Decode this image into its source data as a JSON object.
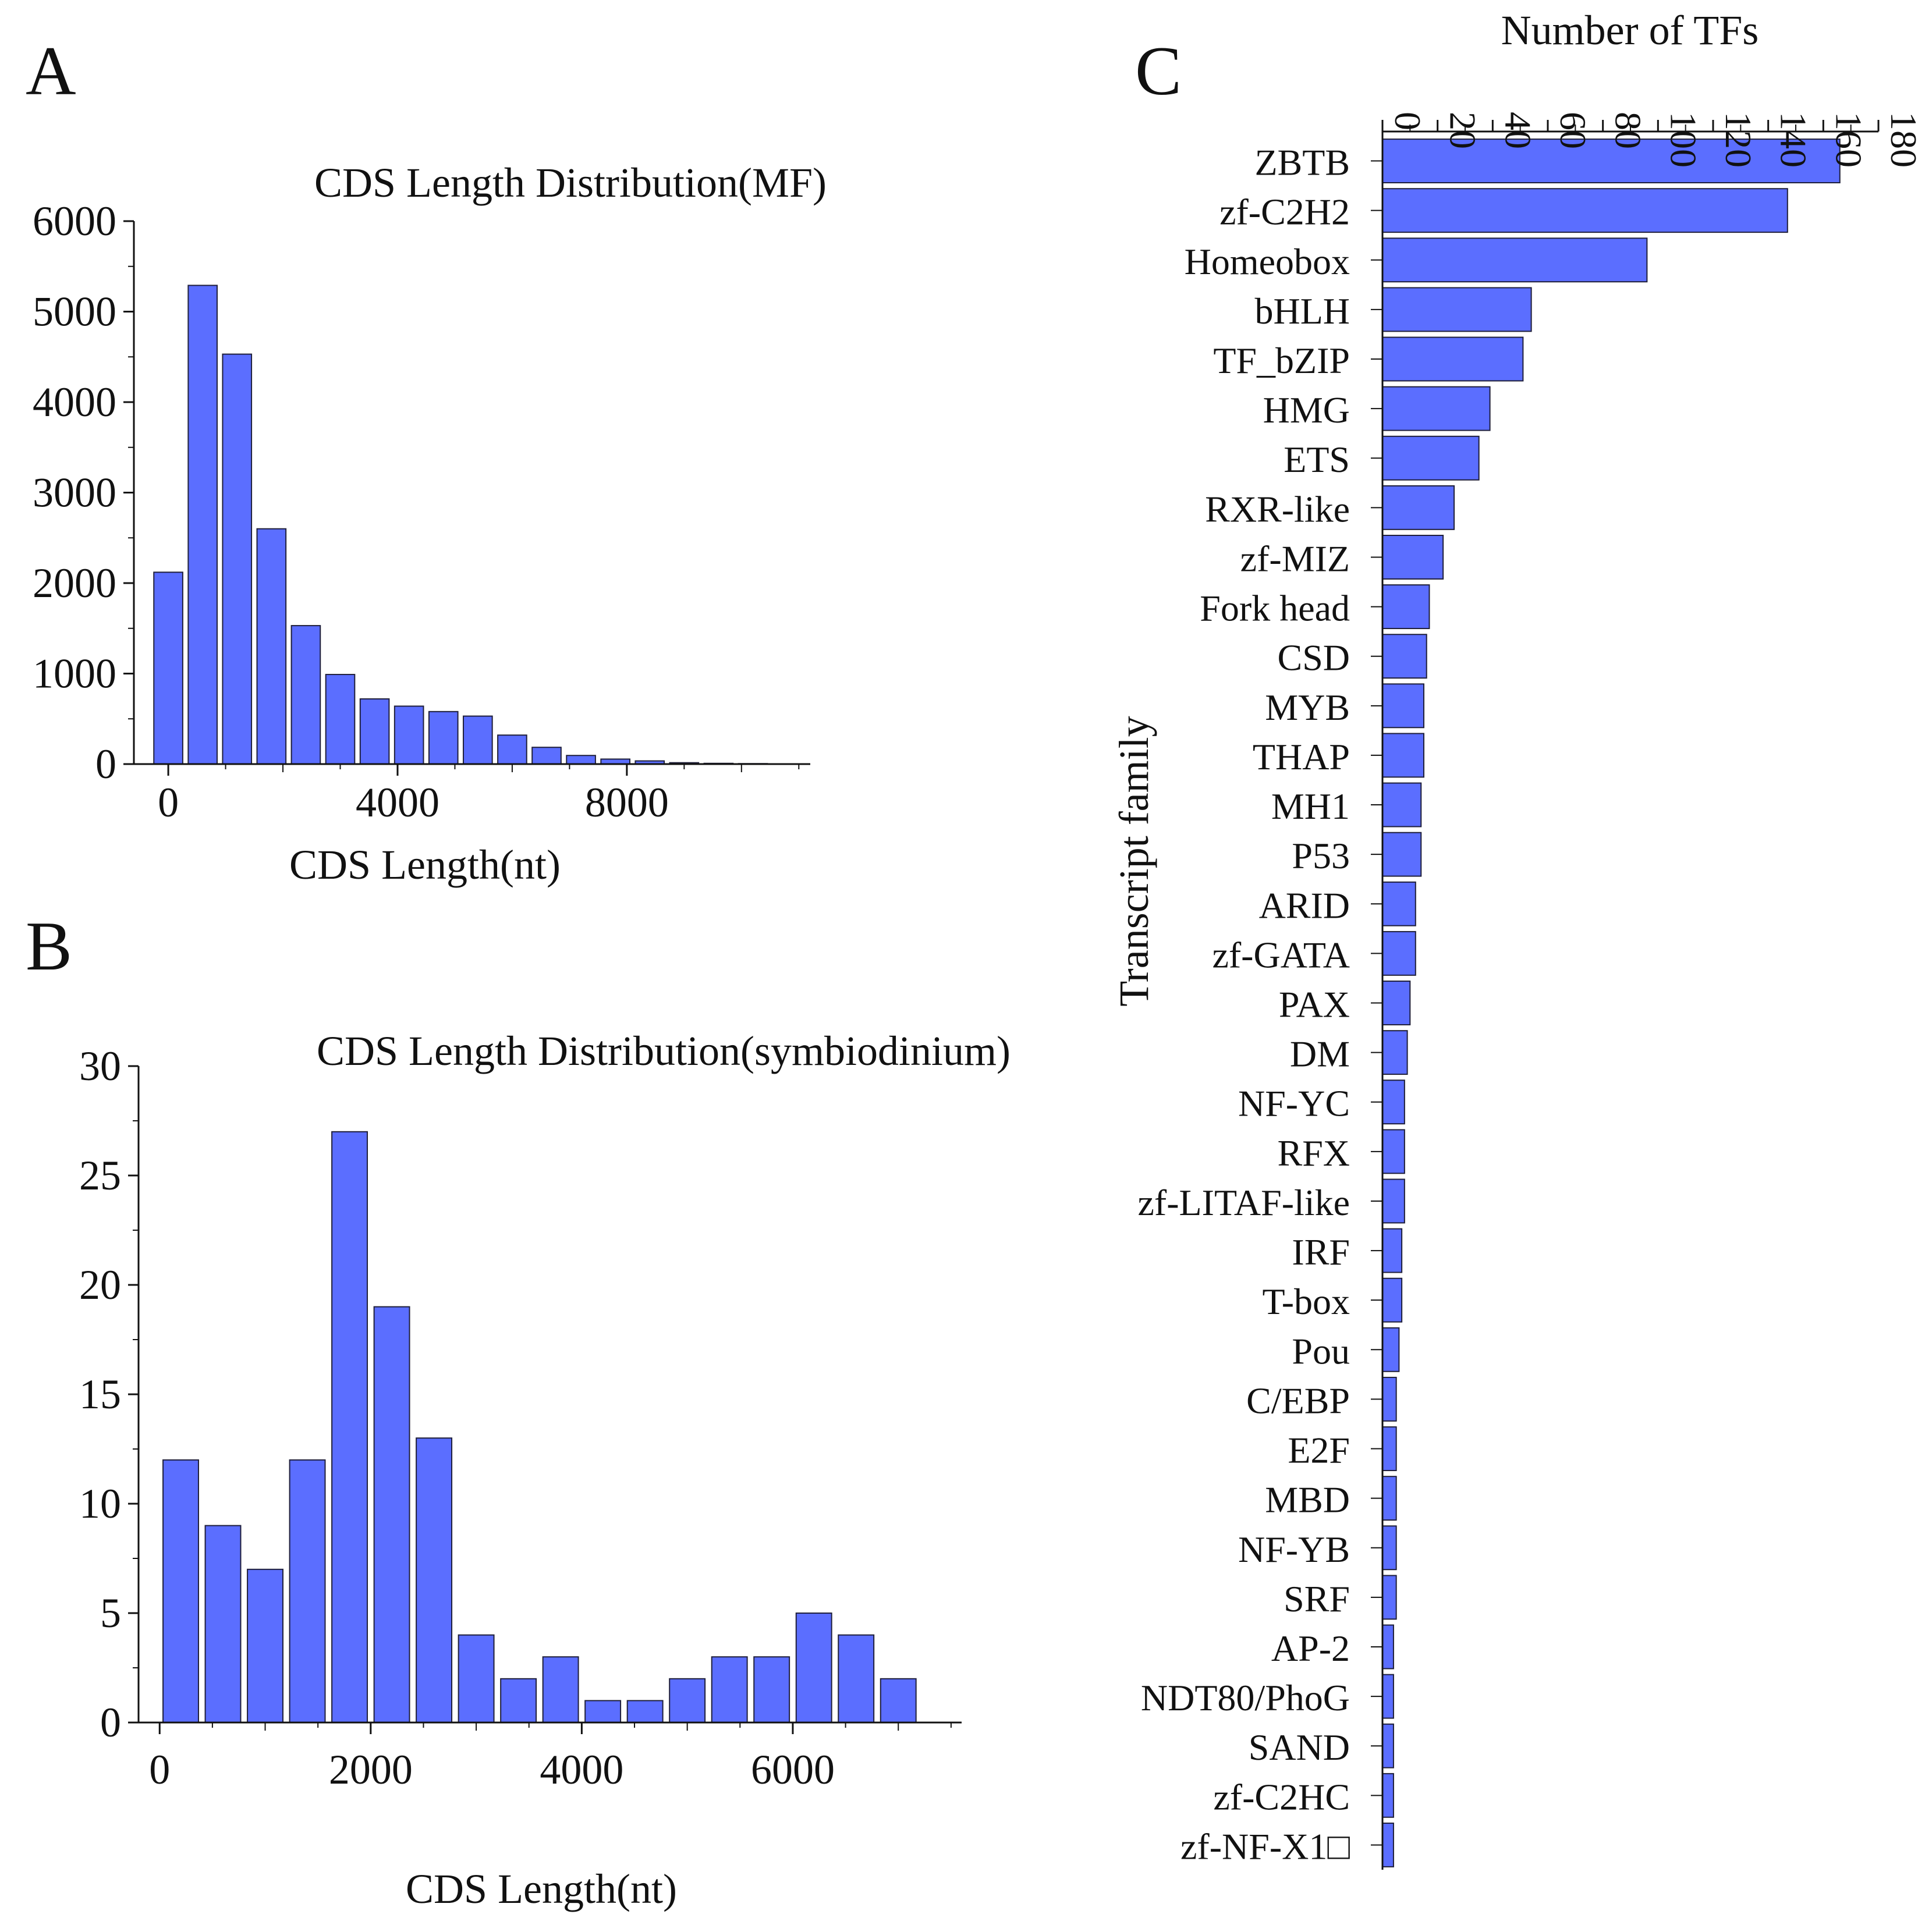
{
  "colors": {
    "bar": "#5B6EFF",
    "bar_edge": "#1f1f3a",
    "axis": "#111111"
  },
  "chart_data": [
    {
      "panel": "A",
      "type": "bar",
      "title": "CDS Length Distribution(MF)",
      "xlabel": "CDS Length(nt)",
      "ylabel": "",
      "xlim": [
        -600,
        11200
      ],
      "ylim": [
        0,
        6000
      ],
      "xticks": [
        0,
        4000,
        8000
      ],
      "yticks": [
        0,
        1000,
        2000,
        3000,
        4000,
        5000,
        6000
      ],
      "bin_width": 600,
      "x": [
        0,
        600,
        1200,
        1800,
        2400,
        3000,
        3600,
        4200,
        4800,
        5400,
        6000,
        6600,
        7200,
        7800,
        8400,
        9000,
        9600,
        10200,
        10800
      ],
      "values": [
        2120,
        5290,
        4530,
        2600,
        1530,
        990,
        720,
        640,
        580,
        530,
        320,
        185,
        95,
        55,
        35,
        15,
        8,
        5,
        3
      ]
    },
    {
      "panel": "B",
      "type": "bar",
      "title": "CDS Length Distribution(symbiodinium)",
      "xlabel": "CDS Length(nt)",
      "ylabel": "",
      "xlim": [
        -200,
        7600
      ],
      "ylim": [
        0,
        30
      ],
      "xticks": [
        0,
        2000,
        4000,
        6000
      ],
      "yticks": [
        0,
        5,
        10,
        15,
        20,
        25,
        30
      ],
      "bin_width": 400,
      "x": [
        200,
        600,
        1000,
        1400,
        1800,
        2200,
        2600,
        3000,
        3400,
        3800,
        4200,
        4600,
        5000,
        5400,
        5800,
        6200,
        6600,
        7000
      ],
      "values": [
        12,
        9,
        7,
        12,
        27,
        19,
        13,
        4,
        2,
        3,
        1,
        1,
        2,
        3,
        3,
        5,
        4,
        2
      ]
    },
    {
      "panel": "C",
      "type": "bar",
      "orientation": "horizontal",
      "title": "",
      "xlabel": "Number of  TFs",
      "ylabel": "Transcript family",
      "xlim": [
        0,
        180
      ],
      "xticks": [
        0,
        20,
        40,
        60,
        80,
        100,
        120,
        140,
        160,
        180
      ],
      "categories": [
        "ZBTB",
        "zf-C2H2",
        "Homeobox",
        "bHLH",
        "TF_bZIP",
        "HMG",
        "ETS",
        "RXR-like",
        "zf-MIZ",
        "Fork head",
        "CSD",
        "MYB",
        "THAP",
        "MH1",
        "P53",
        "ARID",
        "zf-GATA",
        "PAX",
        "DM",
        "NF-YC",
        "RFX",
        "zf-LITAF-like",
        "IRF",
        "T-box",
        "Pou",
        "C/EBP",
        "E2F",
        "MBD",
        "NF-YB",
        "SRF",
        "AP-2",
        "NDT80/PhoG",
        "SAND",
        "zf-C2HC",
        "zf-NF-X1□"
      ],
      "values": [
        166,
        147,
        96,
        54,
        51,
        39,
        35,
        26,
        22,
        17,
        16,
        15,
        15,
        14,
        14,
        12,
        12,
        10,
        9,
        8,
        8,
        8,
        7,
        7,
        6,
        5,
        5,
        5,
        5,
        5,
        4,
        4,
        4,
        4,
        4
      ]
    }
  ],
  "panel_labels": {
    "a": "A",
    "b": "B",
    "c": "C"
  }
}
